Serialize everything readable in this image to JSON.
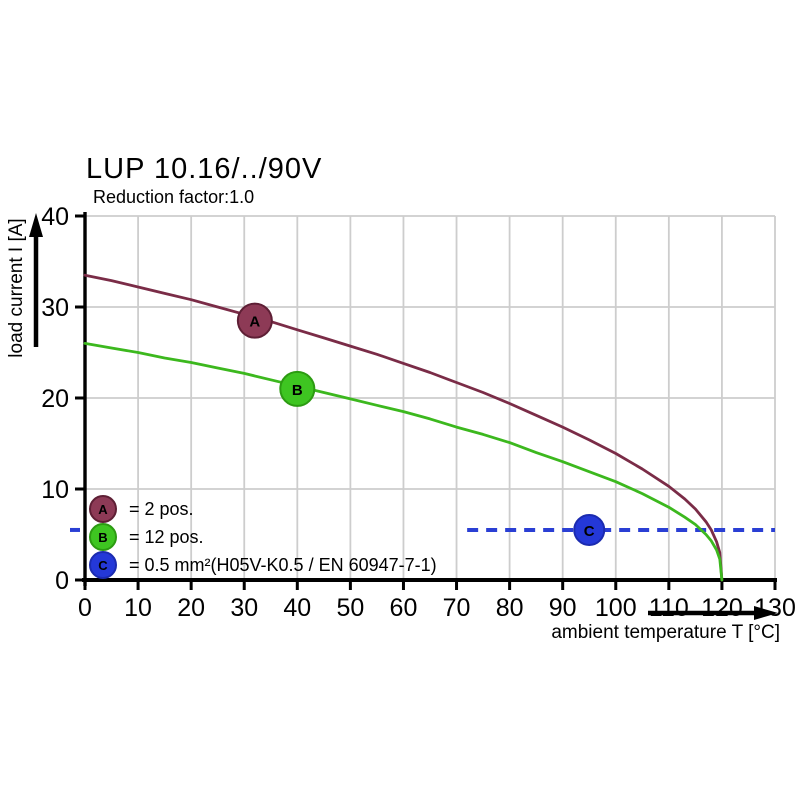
{
  "header": {
    "title": "LUP 10.16/../90V",
    "subtitle": "Reduction factor:1.0"
  },
  "chart_data": {
    "type": "line",
    "title": "LUP 10.16/../90V",
    "subtitle": "Reduction factor:1.0",
    "xlabel": "ambient temperature T [°C]",
    "ylabel": "load current I [A]",
    "xlim": [
      0,
      130
    ],
    "ylim": [
      0,
      40
    ],
    "xticks": [
      0,
      10,
      20,
      30,
      40,
      50,
      60,
      70,
      80,
      90,
      100,
      110,
      120,
      130
    ],
    "yticks": [
      0,
      10,
      20,
      30,
      40
    ],
    "grid": true,
    "legend_position": "lower-left",
    "series": [
      {
        "id": "A",
        "letter": "A",
        "legend_label": "= 2 pos.",
        "color": "#7a2c47",
        "marker_fill": "#8d3a56",
        "marker_stroke": "#5e1f35",
        "marker_at": [
          32,
          28.5
        ],
        "points": [
          [
            0,
            33.5
          ],
          [
            5,
            32.9
          ],
          [
            10,
            32.2
          ],
          [
            15,
            31.5
          ],
          [
            20,
            30.8
          ],
          [
            25,
            30.0
          ],
          [
            30,
            29.2
          ],
          [
            35,
            28.4
          ],
          [
            40,
            27.5
          ],
          [
            45,
            26.6
          ],
          [
            50,
            25.7
          ],
          [
            55,
            24.8
          ],
          [
            60,
            23.8
          ],
          [
            65,
            22.8
          ],
          [
            70,
            21.7
          ],
          [
            75,
            20.6
          ],
          [
            80,
            19.4
          ],
          [
            85,
            18.1
          ],
          [
            90,
            16.8
          ],
          [
            95,
            15.4
          ],
          [
            100,
            13.9
          ],
          [
            105,
            12.2
          ],
          [
            110,
            10.3
          ],
          [
            113,
            8.9
          ],
          [
            115,
            7.8
          ],
          [
            117,
            6.4
          ],
          [
            118,
            5.5
          ],
          [
            119,
            4.2
          ],
          [
            119.6,
            3.0
          ],
          [
            120,
            0
          ]
        ]
      },
      {
        "id": "B",
        "letter": "B",
        "legend_label": "= 12 pos.",
        "color": "#3cb81e",
        "marker_fill": "#3ec521",
        "marker_stroke": "#2c9b12",
        "marker_at": [
          40,
          21
        ],
        "points": [
          [
            0,
            26.0
          ],
          [
            5,
            25.5
          ],
          [
            10,
            25.0
          ],
          [
            15,
            24.4
          ],
          [
            20,
            23.9
          ],
          [
            25,
            23.3
          ],
          [
            30,
            22.7
          ],
          [
            35,
            22.0
          ],
          [
            40,
            21.3
          ],
          [
            45,
            20.6
          ],
          [
            50,
            19.9
          ],
          [
            55,
            19.2
          ],
          [
            60,
            18.5
          ],
          [
            65,
            17.7
          ],
          [
            70,
            16.8
          ],
          [
            75,
            16.0
          ],
          [
            80,
            15.1
          ],
          [
            85,
            14.0
          ],
          [
            90,
            13.0
          ],
          [
            95,
            11.9
          ],
          [
            100,
            10.8
          ],
          [
            105,
            9.5
          ],
          [
            110,
            8.0
          ],
          [
            113,
            6.9
          ],
          [
            115,
            6.1
          ],
          [
            117,
            5.0
          ],
          [
            118,
            4.3
          ],
          [
            119,
            3.3
          ],
          [
            119.6,
            2.3
          ],
          [
            120,
            0
          ]
        ]
      },
      {
        "id": "C",
        "letter": "C",
        "legend_label": "= 0.5 mm²(H05V-K0.5 / EN 60947-7-1)",
        "color": "#2a3fd4",
        "marker_fill": "#2438d8",
        "marker_stroke": "#1b2bb0",
        "marker_at": [
          95,
          5.5
        ],
        "style": "dashed",
        "value": 5.5,
        "x_start": 72,
        "x_end": 130
      }
    ],
    "axis_colors": {
      "grid": "#cdcdcd",
      "axis": "#000000",
      "text": "#000000"
    }
  }
}
